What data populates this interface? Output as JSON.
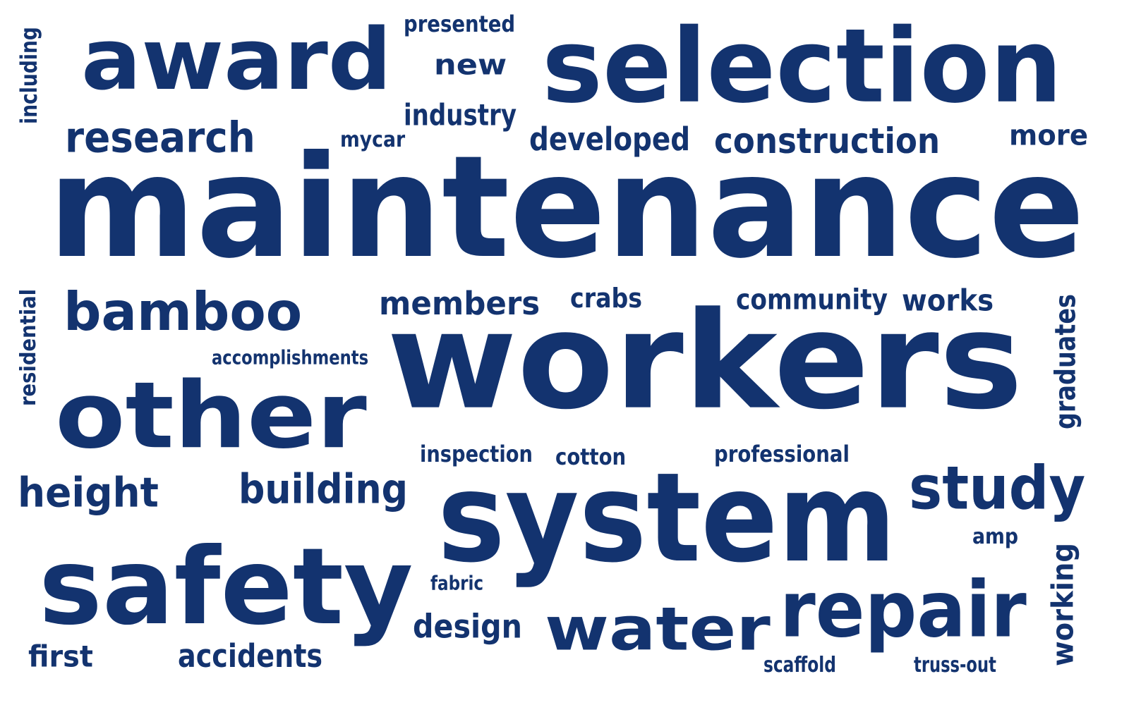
{
  "canvas": {
    "background": "#ffffff",
    "text_color": "#13336f"
  },
  "words": {
    "maintenance": "maintenance",
    "workers": "workers",
    "system": "system",
    "safety": "safety",
    "selection": "selection",
    "other": "other",
    "award": "award",
    "repair": "repair",
    "water": "water",
    "bamboo": "bamboo",
    "study": "study",
    "research": "research",
    "construction": "construction",
    "developed": "developed",
    "building": "building",
    "height": "height",
    "members": "members",
    "new": "new",
    "industry": "industry",
    "more": "more",
    "works": "works",
    "community": "community",
    "crabs": "crabs",
    "design": "design",
    "accidents": "accidents",
    "first": "first",
    "presented": "presented",
    "mycar": "mycar",
    "accomplishments": "accomplishments",
    "inspection": "inspection",
    "cotton": "cotton",
    "professional": "professional",
    "amp": "amp",
    "fabric": "fabric",
    "scaffold": "scaffold",
    "truss_out": "truss-out",
    "including": "including",
    "residential": "residential",
    "graduates": "graduates",
    "working": "working"
  }
}
